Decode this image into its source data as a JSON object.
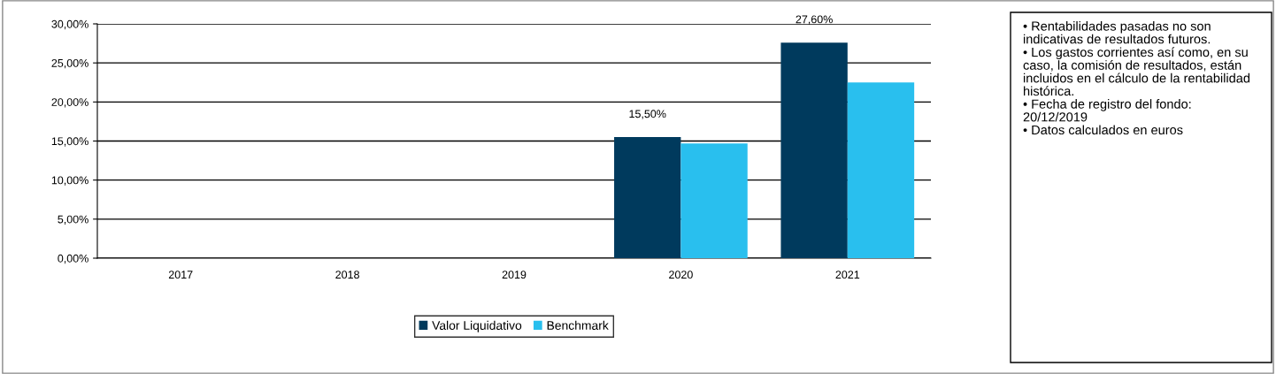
{
  "chart_data": {
    "type": "bar",
    "categories": [
      "2017",
      "2018",
      "2019",
      "2020",
      "2021"
    ],
    "series": [
      {
        "name": "Valor Liquidativo",
        "color": "#003a5d",
        "values": [
          null,
          null,
          null,
          15.5,
          27.6
        ],
        "value_labels": [
          null,
          null,
          null,
          "15,50%",
          "27,60%"
        ]
      },
      {
        "name": "Benchmark",
        "color": "#29bfee",
        "values": [
          null,
          null,
          null,
          14.7,
          22.5
        ]
      }
    ],
    "ylim": [
      0,
      30
    ],
    "yticks": [
      {
        "value": 0,
        "label": "0,00%"
      },
      {
        "value": 5,
        "label": "5,00%"
      },
      {
        "value": 10,
        "label": "10,00%"
      },
      {
        "value": 15,
        "label": "15,00%"
      },
      {
        "value": 20,
        "label": "20,00%"
      },
      {
        "value": 25,
        "label": "25,00%"
      },
      {
        "value": 30,
        "label": "30,00%"
      }
    ],
    "grid": "y",
    "legend": "bottom",
    "annotations": [
      "• Rentabilidades pasadas no son indicativas de resultados futuros.",
      "• Los gastos corrientes así como, en su caso, la comisión de resultados, están incluidos en el cálculo de la rentabilidad histórica.",
      "• Fecha de registro del fondo: 20/12/2019",
      "• Datos calculados en euros"
    ]
  }
}
